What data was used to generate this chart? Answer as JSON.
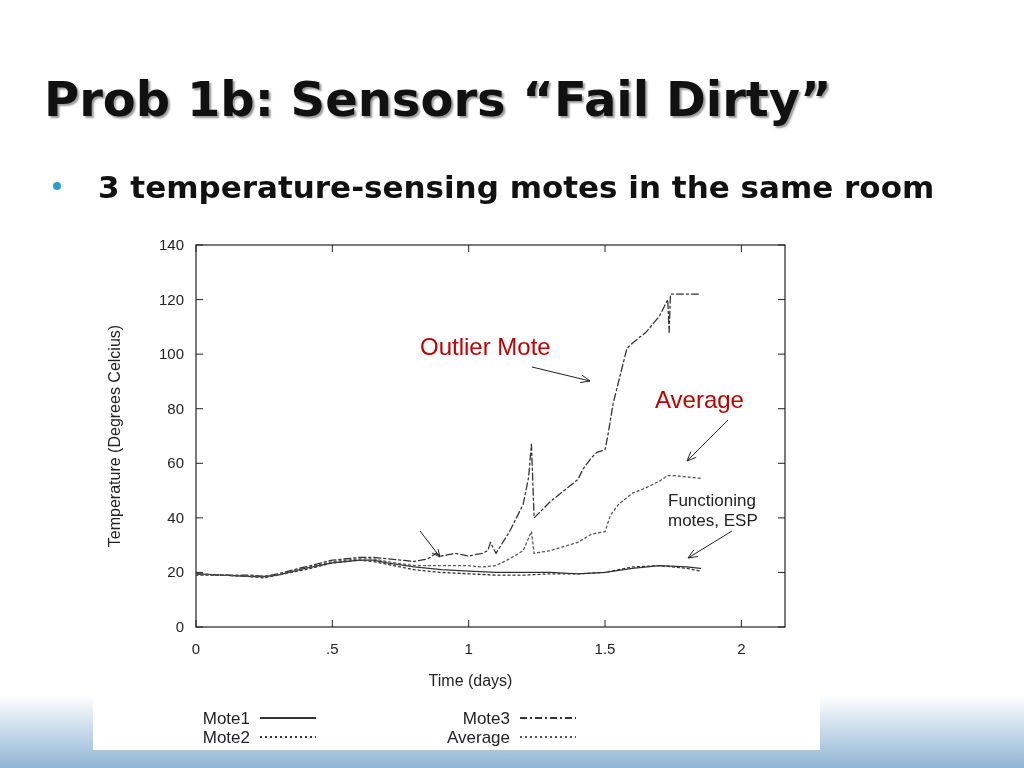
{
  "chart_data": {
    "type": "line",
    "title": "Prob 1b: Sensors “Fail Dirty”",
    "subtitle": "3 temperature-sensing motes in the same room",
    "xlabel": "Time (days)",
    "ylabel": "Temperature (Degrees Celcius)",
    "xlim": [
      0,
      2.16
    ],
    "ylim": [
      0,
      140
    ],
    "xticks": [
      0,
      {
        "value": 0.5,
        "label": ".5"
      },
      1,
      1.5,
      2
    ],
    "yticks": [
      0,
      20,
      40,
      60,
      80,
      100,
      120,
      140
    ],
    "grid": false,
    "legend": "bottom",
    "annotations": [
      "Outlier Mote",
      "Average",
      "Functioning motes, ESP"
    ],
    "series": [
      {
        "name": "Mote1",
        "color": "#333333",
        "line_style": "solid",
        "x": [
          0,
          0.1,
          0.2,
          0.25,
          0.3,
          0.4,
          0.5,
          0.6,
          0.65,
          0.7,
          0.8,
          0.9,
          1.0,
          1.1,
          1.2,
          1.3,
          1.4,
          1.5,
          1.6,
          1.7,
          1.8,
          1.85
        ],
        "values": [
          19.5,
          19,
          18.5,
          18.5,
          19,
          21.5,
          23.5,
          24.5,
          24.5,
          23.5,
          22,
          21,
          20.5,
          20,
          20,
          20,
          19.5,
          20,
          21.5,
          22.5,
          22,
          21.5
        ]
      },
      {
        "name": "Mote2",
        "color": "#333333",
        "line_style": "dotted",
        "x": [
          0,
          0.1,
          0.2,
          0.25,
          0.3,
          0.4,
          0.5,
          0.6,
          0.65,
          0.7,
          0.8,
          0.9,
          1.0,
          1.1,
          1.2,
          1.3,
          1.4,
          1.5,
          1.6,
          1.7,
          1.8,
          1.85
        ],
        "values": [
          19,
          19,
          18.5,
          18,
          19,
          21,
          23.5,
          24.5,
          24,
          23,
          21,
          20,
          19.5,
          19,
          19,
          19.5,
          19.5,
          20,
          22,
          22.5,
          21.5,
          20.5
        ]
      },
      {
        "name": "Mote3",
        "color": "#333333",
        "line_style": "dashed",
        "x": [
          0,
          0.1,
          0.2,
          0.25,
          0.3,
          0.4,
          0.5,
          0.6,
          0.65,
          0.7,
          0.8,
          0.85,
          0.88,
          0.9,
          0.95,
          1.0,
          1.05,
          1.07,
          1.08,
          1.1,
          1.15,
          1.2,
          1.22,
          1.23,
          1.24,
          1.25,
          1.3,
          1.35,
          1.4,
          1.42,
          1.45,
          1.47,
          1.5,
          1.51,
          1.53,
          1.55,
          1.58,
          1.6,
          1.65,
          1.7,
          1.73,
          1.735,
          1.74,
          1.85
        ],
        "values": [
          19.5,
          19,
          19,
          18.5,
          19.5,
          22,
          24.5,
          25.5,
          25.5,
          25,
          24,
          25,
          27,
          26,
          27,
          26,
          27,
          28,
          31,
          27,
          35,
          45,
          55,
          67,
          40,
          41,
          46,
          50,
          54,
          58,
          62,
          64,
          65,
          70,
          82,
          90,
          102,
          104,
          108,
          114,
          120,
          108,
          122,
          122
        ]
      },
      {
        "name": "Average",
        "color": "#555555",
        "line_style": "dotted",
        "x": [
          0,
          0.1,
          0.2,
          0.25,
          0.3,
          0.4,
          0.5,
          0.6,
          0.65,
          0.7,
          0.8,
          0.9,
          1.0,
          1.05,
          1.1,
          1.15,
          1.2,
          1.23,
          1.24,
          1.3,
          1.4,
          1.45,
          1.5,
          1.52,
          1.55,
          1.6,
          1.65,
          1.7,
          1.73,
          1.75,
          1.85
        ],
        "values": [
          19.5,
          19,
          18.5,
          18.5,
          19,
          21.5,
          24,
          25,
          25,
          24,
          22.5,
          22.5,
          22.5,
          22,
          22.5,
          25,
          28,
          35,
          27,
          28,
          31,
          34,
          35,
          41,
          45,
          49,
          51,
          53.5,
          55.5,
          55.5,
          54.5
        ]
      }
    ]
  }
}
